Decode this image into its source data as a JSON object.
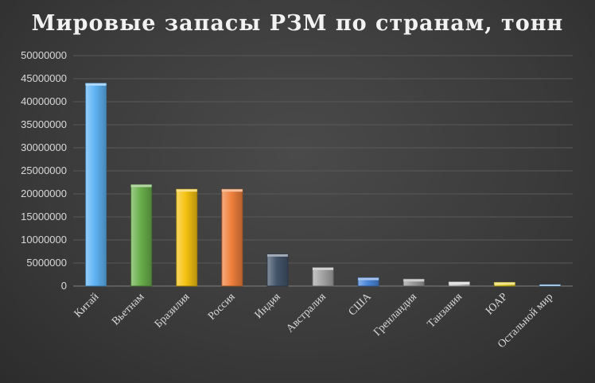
{
  "chart_data": {
    "type": "bar",
    "title": "Мировые запасы РЗМ по странам, тонн",
    "xlabel": "",
    "ylabel": "",
    "ylim": [
      0,
      50000000
    ],
    "yticks": [
      0,
      5000000,
      10000000,
      15000000,
      20000000,
      25000000,
      30000000,
      35000000,
      40000000,
      45000000,
      50000000
    ],
    "grid": true,
    "categories": [
      "Китай",
      "Вьетнам",
      "Бразилия",
      "Россия",
      "Индия",
      "Австралия",
      "США",
      "Гренландия",
      "Танзания",
      "ЮАР",
      "Остальной мир"
    ],
    "values": [
      44000000,
      22000000,
      21000000,
      21000000,
      6900000,
      4000000,
      1800000,
      1500000,
      890000,
      790000,
      310000
    ],
    "colors": [
      "#5fb4f5",
      "#6ab04c",
      "#f5c211",
      "#f0803c",
      "#44546a",
      "#a5a5a5",
      "#4a86d8",
      "#9a9a9a",
      "#c8c8c8",
      "#e6d020",
      "#5b9bd5"
    ]
  }
}
